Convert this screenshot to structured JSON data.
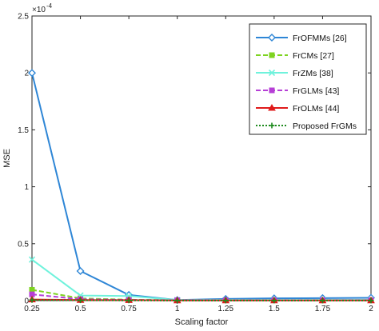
{
  "chart_data": {
    "type": "line",
    "xlabel": "Scaling factor",
    "ylabel": "MSE",
    "y_exponent_label": "×10",
    "y_exponent_power": "-4",
    "xlim": [
      0.25,
      2
    ],
    "ylim": [
      0,
      0.00025
    ],
    "x_ticks": [
      0.25,
      0.5,
      0.75,
      1,
      1.25,
      1.5,
      1.75,
      2
    ],
    "x_tick_labels": [
      "0.25",
      "0.5",
      "0.75",
      "1",
      "1.25",
      "1.5",
      "1.75",
      "2"
    ],
    "y_ticks": [
      0,
      5e-05,
      0.0001,
      0.00015,
      0.0002,
      0.00025
    ],
    "y_tick_labels": [
      "0",
      "0.5",
      "1",
      "1.5",
      "2",
      "2.5"
    ],
    "grid": false,
    "legend_position": "top-right",
    "x": [
      0.25,
      0.5,
      0.75,
      1,
      1.25,
      1.5,
      1.75,
      2
    ],
    "series": [
      {
        "name": "FrOFMMs [26]",
        "color": "#2e86d6",
        "dash": "solid",
        "marker": "diamond",
        "values": [
          0.0002,
          2.6e-05,
          5e-06,
          5e-07,
          1.5e-06,
          2e-06,
          2.2e-06,
          2.5e-06
        ]
      },
      {
        "name": "FrCMs [27]",
        "color": "#7ed321",
        "dash": "dashed",
        "marker": "square",
        "values": [
          9.5e-06,
          2e-06,
          8e-07,
          3e-07,
          3e-07,
          3e-07,
          3e-07,
          3e-07
        ]
      },
      {
        "name": "FrZMs [38]",
        "color": "#6ff2dc",
        "dash": "solid",
        "marker": "x",
        "values": [
          3.6e-05,
          4.5e-06,
          4e-06,
          5e-07,
          6e-07,
          6e-07,
          6e-07,
          6e-07
        ]
      },
      {
        "name": "FrGLMs [43]",
        "color": "#b63fd6",
        "dash": "dashed",
        "marker": "square",
        "values": [
          5.5e-06,
          1.2e-06,
          6e-07,
          3e-07,
          3e-07,
          3e-07,
          3e-07,
          3e-07
        ]
      },
      {
        "name": "FrOLMs [44]",
        "color": "#e01b1b",
        "dash": "solid",
        "marker": "triangle",
        "values": [
          1e-06,
          5e-07,
          4e-07,
          2e-07,
          2e-07,
          2e-07,
          2e-07,
          2e-07
        ]
      },
      {
        "name": "Proposed FrGMs",
        "color": "#1d8a1d",
        "dash": "dotted",
        "marker": "plus",
        "values": [
          5e-07,
          3e-07,
          2e-07,
          1e-07,
          1e-07,
          1e-07,
          1e-07,
          1e-07
        ]
      }
    ]
  }
}
